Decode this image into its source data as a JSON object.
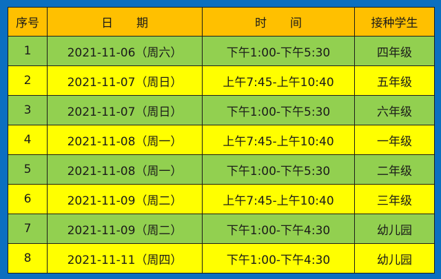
{
  "headers": [
    "序号",
    "日　　期",
    "时　　间",
    "接种学生"
  ],
  "rows": [
    [
      "1",
      "2021-11-06（周六）",
      "下午1:00-下午5:30",
      "四年级"
    ],
    [
      "2",
      "2021-11-07（周日）",
      "上午7:45-上午10:40",
      "五年级"
    ],
    [
      "3",
      "2021-11-07（周日）",
      "下午1:00-下午5:30",
      "六年级"
    ],
    [
      "4",
      "2021-11-08（周一）",
      "上午7:45-上午10:40",
      "一年级"
    ],
    [
      "5",
      "2021-11-08（周一）",
      "下午1:00-下午5:30",
      "二年级"
    ],
    [
      "6",
      "2021-11-09（周二）",
      "上午7:45-上午10:40",
      "三年级"
    ],
    [
      "7",
      "2021-11-09（周二）",
      "下午1:00-下午4:30",
      "幼儿园"
    ],
    [
      "8",
      "2021-11-11（周四）",
      "下午1:00-下午4:30",
      "幼儿园"
    ]
  ],
  "colors": {
    "background": "#0b6fc0",
    "header": "#ffc000",
    "row_green": "#92d050",
    "row_yellow": "#ffff00"
  }
}
